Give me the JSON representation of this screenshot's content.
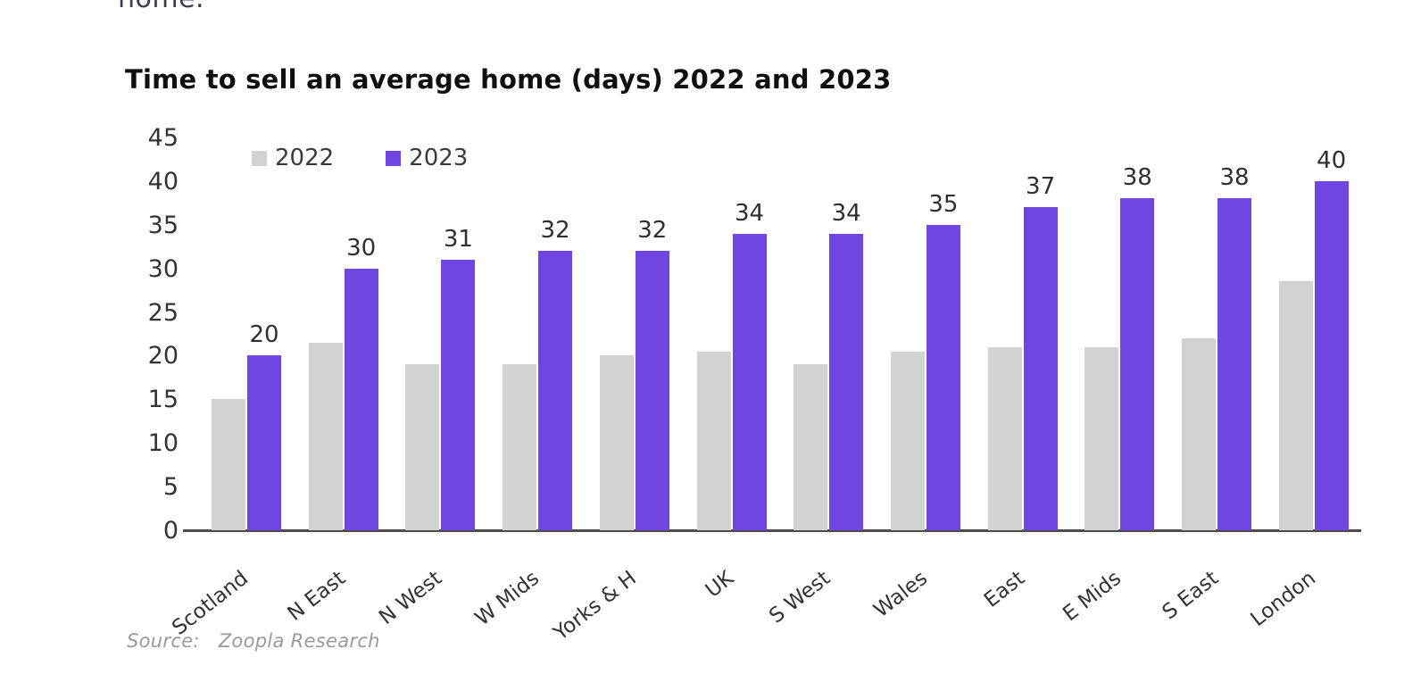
{
  "page": {
    "cropped_heading": "home."
  },
  "chart_data": {
    "type": "bar",
    "title": "Time to sell an average home (days) 2022 and 2023",
    "categories": [
      "Scotland",
      "N East",
      "N West",
      "W Mids",
      "Yorks & H",
      "UK",
      "S West",
      "Wales",
      "East",
      "E Mids",
      "S East",
      "London"
    ],
    "series": [
      {
        "name": "2022",
        "color": "#d2d2d2",
        "values": [
          15,
          21.5,
          19,
          19,
          20,
          20.5,
          19,
          20.5,
          21,
          21,
          22,
          28.5
        ],
        "labels_shown": false
      },
      {
        "name": "2023",
        "color": "#6f46e1",
        "values": [
          20,
          30,
          31,
          32,
          32,
          34,
          34,
          35,
          37,
          38,
          38,
          40
        ],
        "labels_shown": true
      }
    ],
    "bar_labels": [
      "20",
      "30",
      "31",
      "32",
      "32",
      "34",
      "34",
      "35",
      "37",
      "38",
      "38",
      "40"
    ],
    "ylim": [
      0,
      45
    ],
    "ytick_step": 5,
    "grid": false,
    "legend_position": "top-left",
    "xlabel": "",
    "ylabel": ""
  },
  "source": {
    "prefix": "Source:",
    "name": "Zoopla Research"
  },
  "colors": {
    "bar_2022": "#d2d2d2",
    "bar_2023": "#6f46e1",
    "axis_line": "#4d4d4d",
    "text_dark": "#2f2f2f",
    "source_text": "#9a9a9a"
  }
}
